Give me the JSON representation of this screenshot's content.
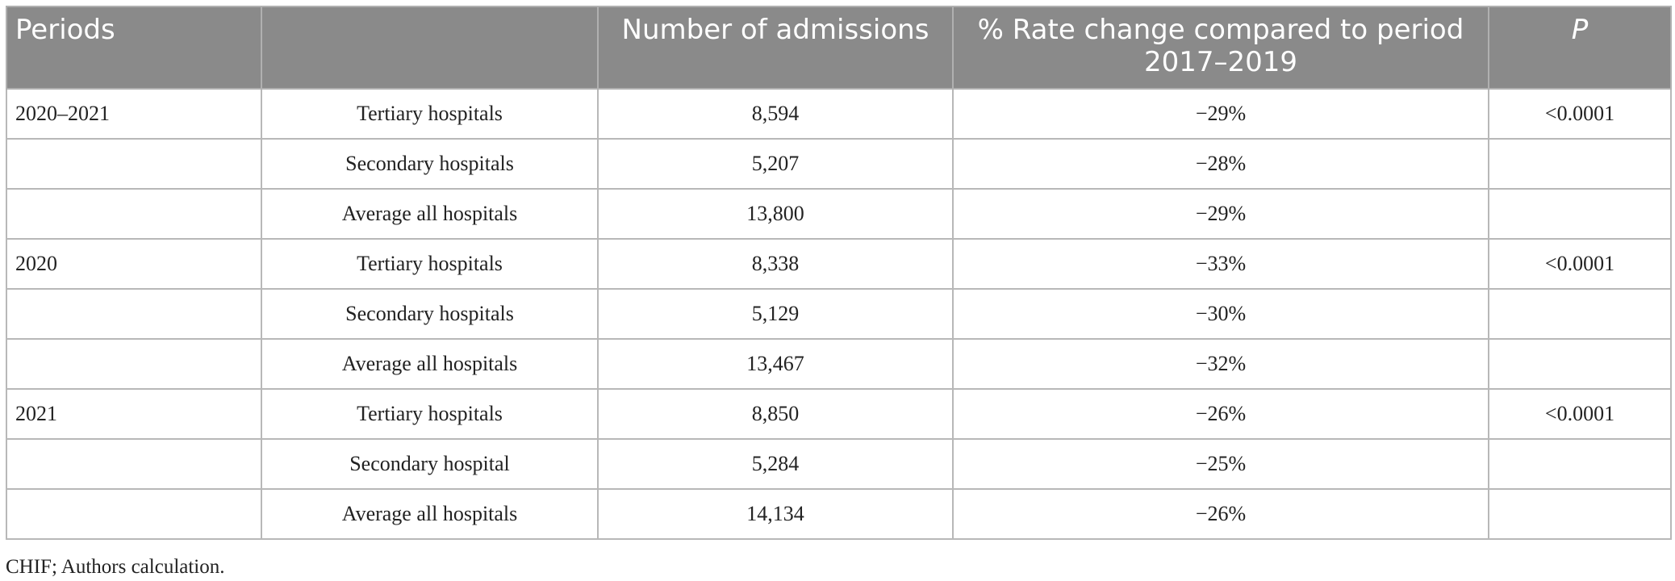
{
  "table": {
    "headers": [
      "Periods",
      "",
      "Number of admissions",
      "% Rate change compared to period 2017–2019",
      "P"
    ],
    "rows": [
      [
        "2020–2021",
        "Tertiary hospitals",
        "8,594",
        "−29%",
        "<0.0001"
      ],
      [
        "",
        "Secondary hospitals",
        "5,207",
        "−28%",
        ""
      ],
      [
        "",
        "Average all hospitals",
        "13,800",
        "−29%",
        ""
      ],
      [
        "2020",
        "Tertiary hospitals",
        "8,338",
        "−33%",
        "<0.0001"
      ],
      [
        "",
        "Secondary hospitals",
        "5,129",
        "−30%",
        ""
      ],
      [
        "",
        "Average all hospitals",
        "13,467",
        "−32%",
        ""
      ],
      [
        "2021",
        "Tertiary hospitals",
        "8,850",
        "−26%",
        "<0.0001"
      ],
      [
        "",
        "Secondary hospital",
        "5,284",
        "−25%",
        ""
      ],
      [
        "",
        "Average all hospitals",
        "14,134",
        "−26%",
        ""
      ]
    ]
  },
  "footnote": "CHIF; Authors calculation."
}
